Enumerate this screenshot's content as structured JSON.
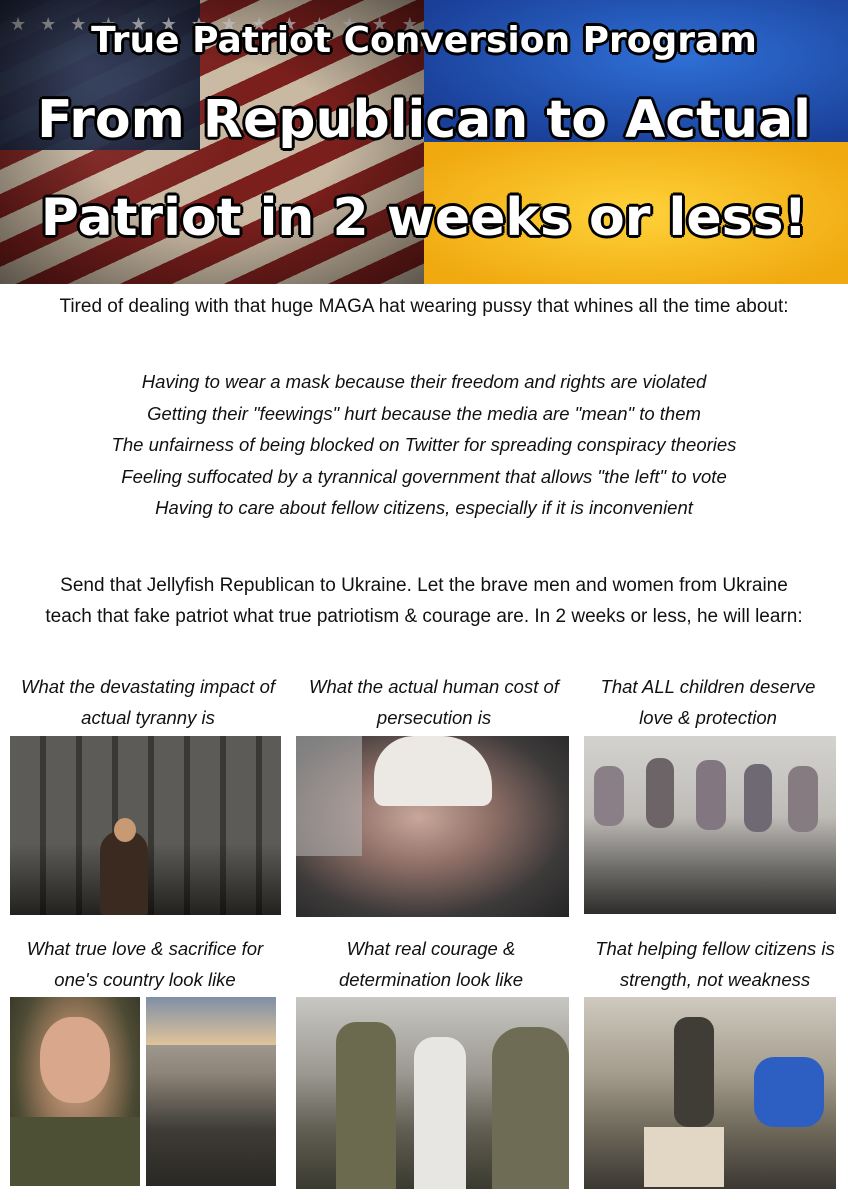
{
  "banner": {
    "line1": "True Patriot Conversion Program",
    "line2": "From Republican to Actual",
    "line3": "Patriot in 2 weeks or less!"
  },
  "intro": "Tired of dealing with that huge MAGA hat wearing pussy that whines all the time about:",
  "complaints": [
    "Having to wear a mask because their freedom and rights are violated",
    "Getting their \"feewings\" hurt because the media are \"mean\" to them",
    "The unfairness of being blocked on Twitter for spreading  conspiracy theories",
    "Feeling suffocated by a tyrannical government that allows \"the left\" to vote",
    "Having to care about fellow citizens, especially if it is inconvenient"
  ],
  "send": {
    "line1": "Send that Jellyfish Republican to Ukraine.  Let the brave men and women from Ukraine",
    "line2": "teach that fake patriot what true patriotism & courage are. In 2 weeks or less, he will learn:"
  },
  "lessons": [
    {
      "line1": "What the devastating impact of",
      "line2": "actual tyranny is"
    },
    {
      "line1": "What the actual human cost of",
      "line2": "persecution is"
    },
    {
      "line1": "That ALL children deserve",
      "line2": "love & protection"
    },
    {
      "line1": "What true love & sacrifice for",
      "line2": "one's country look like"
    },
    {
      "line1": "What real courage &",
      "line2": "determination look like"
    },
    {
      "line1": "That helping fellow citizens is",
      "line2": "strength, not weakness"
    }
  ]
}
